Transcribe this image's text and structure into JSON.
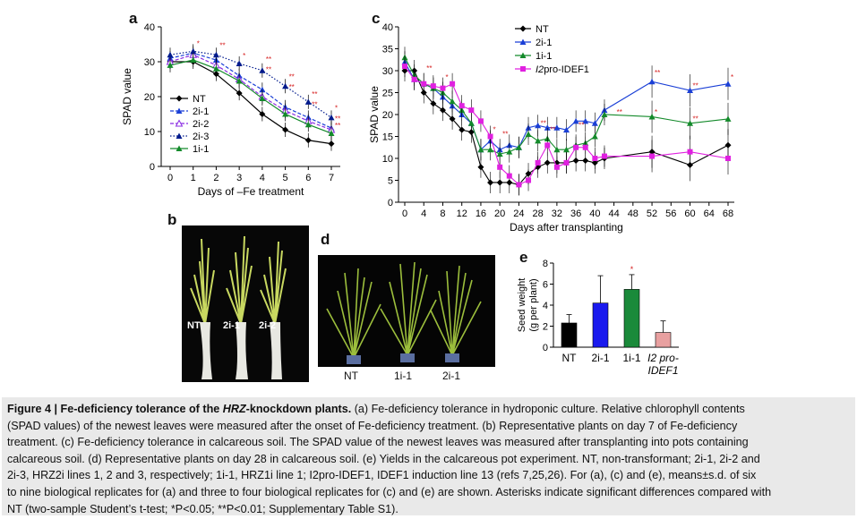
{
  "panels": {
    "a": {
      "letter": "a"
    },
    "b": {
      "letter": "b"
    },
    "c": {
      "letter": "c"
    },
    "d": {
      "letter": "d"
    },
    "e": {
      "letter": "e"
    }
  },
  "chart_data": [
    {
      "id": "a",
      "type": "line",
      "xlabel": "Days of –Fe treatment",
      "ylabel": "SPAD value",
      "x": [
        0,
        1,
        2,
        3,
        4,
        5,
        6,
        7
      ],
      "xticks": [
        "0",
        "1",
        "2",
        "3",
        "4",
        "5",
        "6",
        "7"
      ],
      "ylim": [
        0,
        40
      ],
      "yticks": [
        "0",
        "10",
        "20",
        "30",
        "40"
      ],
      "legend_position": "bottom-left",
      "series": [
        {
          "name": "NT",
          "color": "#000000",
          "marker": "diamond",
          "dash": "solid",
          "values": [
            30,
            30,
            26.5,
            21,
            15,
            10.5,
            7.5,
            6.5
          ]
        },
        {
          "name": "2i-1",
          "color": "#1a3fd6",
          "marker": "triangle",
          "dash": "dashed",
          "values": [
            31,
            32.5,
            30.5,
            26,
            22,
            17,
            14,
            11
          ]
        },
        {
          "name": "2i-2",
          "color": "#8a2be2",
          "marker": "triangle-open",
          "dash": "dashed",
          "values": [
            30,
            32,
            29,
            25,
            20,
            16,
            13,
            10.5
          ]
        },
        {
          "name": "2i-3",
          "color": "#001a8c",
          "marker": "triangle",
          "dash": "dotted",
          "values": [
            32,
            33,
            32,
            29.5,
            27.5,
            23,
            18.5,
            14
          ]
        },
        {
          "name": "1i-1",
          "color": "#138a2a",
          "marker": "triangle",
          "dash": "solid",
          "values": [
            29,
            30.5,
            28,
            24.5,
            19.5,
            15,
            12,
            9.5
          ]
        }
      ],
      "annotations": [
        "*",
        "**"
      ]
    },
    {
      "id": "c",
      "type": "line",
      "xlabel": "Days after transplanting",
      "ylabel": "SPAD value",
      "x": [
        0,
        1,
        2,
        3,
        4,
        5,
        6,
        7,
        8,
        9,
        10,
        11,
        12,
        13,
        14,
        15,
        16,
        17,
        18,
        19,
        20,
        21,
        22,
        23,
        24,
        25,
        26,
        27,
        28,
        29,
        30,
        31,
        32,
        33,
        34,
        35,
        36,
        37,
        38,
        39,
        40,
        41,
        42,
        43,
        44,
        45,
        46,
        47,
        48,
        49,
        50,
        51,
        52,
        53,
        54,
        55,
        56,
        57,
        58,
        59,
        60,
        61,
        62,
        63,
        64,
        65,
        66,
        67,
        68
      ],
      "xticks": [
        "0",
        "4",
        "8",
        "12",
        "16",
        "20",
        "24",
        "28",
        "32",
        "36",
        "40",
        "44",
        "48",
        "52",
        "56",
        "60",
        "64",
        "68"
      ],
      "ylim": [
        0,
        40
      ],
      "yticks": [
        "0",
        "5",
        "10",
        "15",
        "20",
        "25",
        "30",
        "35",
        "40"
      ],
      "legend_position": "top-right",
      "points": {
        "NT": [
          [
            0,
            30
          ],
          [
            2,
            30
          ],
          [
            4,
            25
          ],
          [
            6,
            22.5
          ],
          [
            8,
            21
          ],
          [
            10,
            19
          ],
          [
            12,
            16.5
          ],
          [
            14,
            16
          ],
          [
            16,
            8
          ],
          [
            18,
            4.5
          ],
          [
            20,
            4.5
          ],
          [
            22,
            4.5
          ],
          [
            24,
            4
          ],
          [
            26,
            6.5
          ],
          [
            28,
            8
          ],
          [
            30,
            9
          ],
          [
            32,
            9
          ],
          [
            34,
            9
          ],
          [
            36,
            9.5
          ],
          [
            38,
            9.5
          ],
          [
            40,
            9
          ],
          [
            42,
            10
          ],
          [
            52,
            11.5
          ],
          [
            60,
            8.5
          ],
          [
            68,
            13
          ]
        ],
        "2i-1": [
          [
            0,
            32
          ],
          [
            2,
            28
          ],
          [
            4,
            27
          ],
          [
            6,
            26
          ],
          [
            8,
            24
          ],
          [
            10,
            22
          ],
          [
            12,
            20
          ],
          [
            14,
            18
          ],
          [
            16,
            12
          ],
          [
            18,
            14
          ],
          [
            20,
            12
          ],
          [
            22,
            13
          ],
          [
            24,
            12.5
          ],
          [
            26,
            17
          ],
          [
            28,
            17.5
          ],
          [
            30,
            17
          ],
          [
            32,
            17
          ],
          [
            34,
            16.5
          ],
          [
            36,
            18.5
          ],
          [
            38,
            18.5
          ],
          [
            40,
            18
          ],
          [
            42,
            21
          ],
          [
            52,
            27.5
          ],
          [
            60,
            25.5
          ],
          [
            68,
            27
          ]
        ],
        "1i-1": [
          [
            0,
            33
          ],
          [
            2,
            29
          ],
          [
            4,
            27
          ],
          [
            6,
            26
          ],
          [
            8,
            25
          ],
          [
            10,
            23
          ],
          [
            12,
            21
          ],
          [
            14,
            18
          ],
          [
            16,
            12
          ],
          [
            18,
            12
          ],
          [
            20,
            11
          ],
          [
            22,
            11.5
          ],
          [
            24,
            12.5
          ],
          [
            26,
            15.5
          ],
          [
            28,
            14
          ],
          [
            30,
            14.5
          ],
          [
            32,
            12
          ],
          [
            34,
            12
          ],
          [
            36,
            13
          ],
          [
            38,
            13.5
          ],
          [
            40,
            15
          ],
          [
            42,
            20
          ],
          [
            52,
            19.5
          ],
          [
            60,
            18
          ],
          [
            68,
            19
          ]
        ],
        "I2pro-IDEF1": [
          [
            0,
            31
          ],
          [
            2,
            28
          ],
          [
            4,
            27
          ],
          [
            6,
            26.5
          ],
          [
            8,
            26
          ],
          [
            10,
            27
          ],
          [
            12,
            22
          ],
          [
            14,
            21
          ],
          [
            16,
            18.5
          ],
          [
            18,
            15
          ],
          [
            20,
            8
          ],
          [
            22,
            6
          ],
          [
            24,
            4
          ],
          [
            26,
            5
          ],
          [
            28,
            9
          ],
          [
            30,
            13
          ],
          [
            32,
            8
          ],
          [
            34,
            9
          ],
          [
            36,
            12.5
          ],
          [
            38,
            12.5
          ],
          [
            40,
            10
          ],
          [
            42,
            10.5
          ],
          [
            52,
            10.5
          ],
          [
            60,
            11.5
          ],
          [
            68,
            10
          ]
        ]
      },
      "series": [
        {
          "name": "NT",
          "color": "#000000",
          "marker": "diamond"
        },
        {
          "name": "2i-1",
          "color": "#1a3fd6",
          "marker": "triangle"
        },
        {
          "name": "1i-1",
          "color": "#138a2a",
          "marker": "triangle"
        },
        {
          "name": "I2pro-IDEF1",
          "name_prefix": "I2",
          "name_suffix": "pro-IDEF1",
          "color": "#e020e0",
          "marker": "square"
        }
      ],
      "annotations": [
        "*",
        "**"
      ]
    },
    {
      "id": "e",
      "type": "bar",
      "ylabel_line1": "Seed weight",
      "ylabel_line2": "(g per plant)",
      "categories": [
        "NT",
        "2i-1",
        "1i-1",
        "I2 pro-IDEF1"
      ],
      "category_line1": [
        "NT",
        "2i-1",
        "1i-1",
        "I2 pro-"
      ],
      "category_line2": [
        "",
        "",
        "",
        "IDEF1"
      ],
      "values": [
        2.3,
        4.2,
        5.5,
        1.4
      ],
      "errors": [
        0.8,
        2.6,
        1.4,
        1.1
      ],
      "colors": [
        "#000000",
        "#1a1aee",
        "#1a8a3a",
        "#e8a0a0"
      ],
      "ylim": [
        0,
        8
      ],
      "yticks": [
        "0",
        "2",
        "4",
        "6",
        "8"
      ],
      "annotations": [
        "*"
      ]
    }
  ],
  "photos": {
    "b": {
      "labels": [
        "NT",
        "2i-1",
        "2i-2"
      ]
    },
    "d": {
      "labels": [
        "NT",
        "1i-1",
        "2i-1"
      ]
    }
  },
  "caption": {
    "title_prefix": "Figure 4 | Fe-deficiency tolerance of the ",
    "title_gene": "HRZ",
    "title_suffix": "-knockdown plants.",
    "lines": [
      " (a) Fe-deficiency tolerance in hydroponic culture. Relative chlorophyll contents",
      "(SPAD values) of the newest leaves were measured after the onset of Fe-deficiency treatment. (b) Representative plants on day 7 of Fe-deficiency",
      "treatment. (c) Fe-deficiency tolerance in calcareous soil. The SPAD value of the newest leaves was measured after transplanting into pots containing",
      "calcareous soil. (d) Representative plants on day 28 in calcareous soil. (e) Yields in the calcareous pot experiment. NT, non-transformant; 2i-1, 2i-2 and",
      "2i-3, HRZ2i lines 1, 2 and 3, respectively; 1i-1, HRZ1i line 1; I2pro-IDEF1, IDEF1 induction line 13 (refs 7,25,26). For (a), (c) and (e), means±s.d. of six",
      "to nine biological replicates for (a) and three to four biological replicates for (c) and (e) are shown. Asterisks indicate significant differences compared with",
      "NT (two-sample Student’s t-test; *P<0.05; **P<0.01; Supplementary Table S1)."
    ]
  }
}
